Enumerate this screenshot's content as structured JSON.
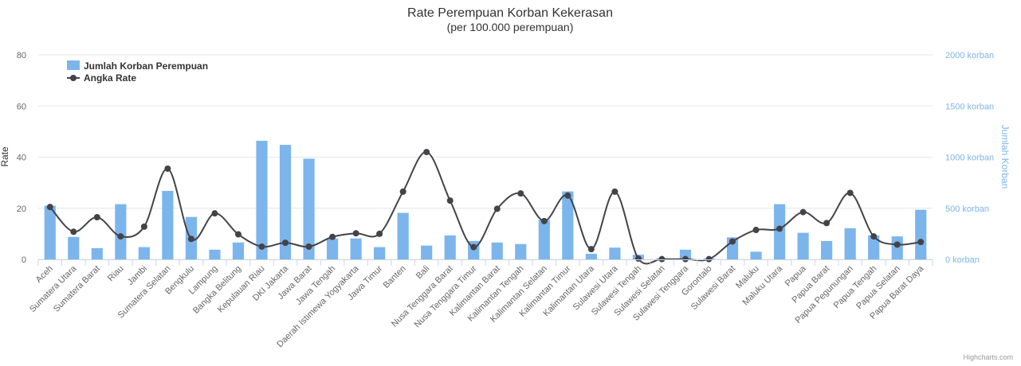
{
  "chart_data": {
    "type": "bar+line",
    "title": "Rate Perempuan Korban Kekerasan",
    "subtitle": "(per 100.000 perempuan)",
    "ylabel_left": "Rate",
    "ylabel_right": "Jumlah Korban",
    "ylim_left": [
      0,
      80
    ],
    "ylim_right": [
      0,
      2000
    ],
    "left_ticks": [
      "0",
      "20",
      "40",
      "60",
      "80"
    ],
    "right_ticks": [
      "0 korban",
      "500 korban",
      "1000 korban",
      "1500 korban",
      "2000 korban"
    ],
    "legend_position": "top-left",
    "grid": true,
    "credits": "Highcharts.com",
    "categories": [
      "Aceh",
      "Sumatera Utara",
      "Sumatera Barat",
      "Riau",
      "Jambi",
      "Sumatera Selatan",
      "Bengkulu",
      "Lampung",
      "Bangka Belitung",
      "Kepulauan Riau",
      "DKI Jakarta",
      "Jawa Barat",
      "Jawa Tengah",
      "Daerah Istimewa Yogyakarta",
      "Jawa Timur",
      "Banten",
      "Bali",
      "Nusa Tenggara Barat",
      "Nusa Tenggara Timur",
      "Kalimantan Barat",
      "Kalimantan Tengah",
      "Kalimantan Selatan",
      "Kalimantan Timur",
      "Kalimantan Utara",
      "Sulawesi Utara",
      "Sulawesi Tengah",
      "Sulawesi Selatan",
      "Sulawesi Tenggara",
      "Gorontalo",
      "Sulawesi Barat",
      "Maluku",
      "Maluku Utara",
      "Papua",
      "Papua Barat",
      "Papua Pegunungan",
      "Papua Tengah",
      "Papua Selatan",
      "Papua Barat Daya"
    ],
    "series": [
      {
        "name": "Jumlah Korban Perempuan",
        "type": "column",
        "axis": "right",
        "color": "#7cb5ec",
        "values": [
          525,
          220,
          110,
          540,
          120,
          670,
          415,
          95,
          165,
          1160,
          1120,
          985,
          205,
          205,
          120,
          455,
          135,
          235,
          180,
          165,
          150,
          385,
          665,
          55,
          115,
          45,
          10,
          95,
          10,
          215,
          75,
          540,
          260,
          180,
          305,
          235,
          225,
          485
        ]
      },
      {
        "name": "Angka Rate",
        "type": "spline",
        "axis": "left",
        "color": "#434348",
        "values": [
          20.5,
          10.8,
          16.5,
          9.0,
          12.8,
          35.5,
          8.0,
          18.0,
          9.8,
          5.0,
          6.5,
          5.0,
          8.8,
          10.2,
          10.0,
          26.5,
          42.0,
          23.0,
          4.8,
          19.8,
          25.8,
          15.0,
          25.0,
          4.0,
          26.5,
          0.3,
          0.1,
          0.1,
          0.1,
          7.0,
          11.5,
          12.0,
          18.5,
          14.2,
          26.0,
          9.0,
          5.8,
          6.8
        ]
      }
    ]
  }
}
